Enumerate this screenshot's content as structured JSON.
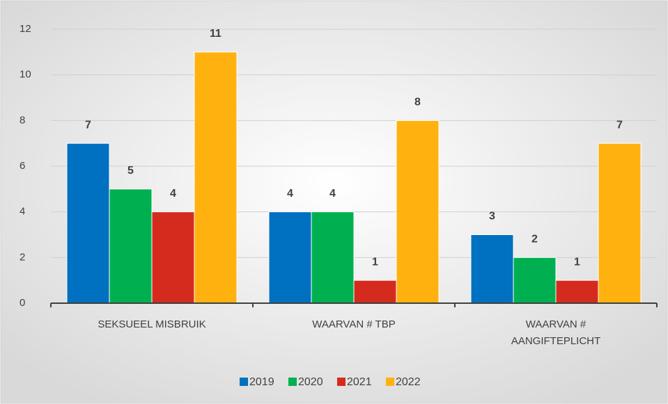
{
  "chart_data": {
    "type": "bar",
    "categories": [
      "SEKSUEEL MISBRUIK",
      "WAARVAN # TBP",
      "WAARVAN # AANGIFTEPLICHT"
    ],
    "series": [
      {
        "name": "2019",
        "color": "#0070c0",
        "values": [
          7,
          4,
          3
        ]
      },
      {
        "name": "2020",
        "color": "#00b050",
        "values": [
          5,
          4,
          2
        ]
      },
      {
        "name": "2021",
        "color": "#d52b1e",
        "values": [
          4,
          1,
          1
        ]
      },
      {
        "name": "2022",
        "color": "#ffb20f",
        "values": [
          11,
          8,
          7
        ]
      }
    ],
    "ylim": [
      0,
      12
    ],
    "yticks": [
      0,
      2,
      4,
      6,
      8,
      10,
      12
    ],
    "grid": true,
    "legend": "bottom"
  }
}
